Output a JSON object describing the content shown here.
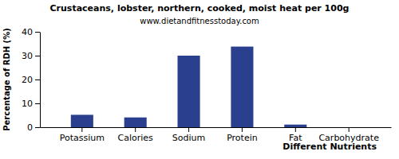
{
  "chart_data": {
    "type": "bar",
    "title": "Crustaceans, lobster, northern, cooked, moist heat per 100g",
    "subtitle": "www.dietandfitnesstoday.com",
    "x_label": "Different Nutrients",
    "y_label": "Percentage of RDH (%)",
    "categories": [
      "Potassium",
      "Calories",
      "Sodium",
      "Protein",
      "Fat",
      "Carbohydrate"
    ],
    "values": [
      5.2,
      4.1,
      30,
      33.8,
      1.1,
      0
    ],
    "color": "#2b3f8f",
    "ylim": [
      0,
      40
    ],
    "yticks": [
      0,
      10,
      20,
      30,
      40
    ],
    "grid": false
  }
}
